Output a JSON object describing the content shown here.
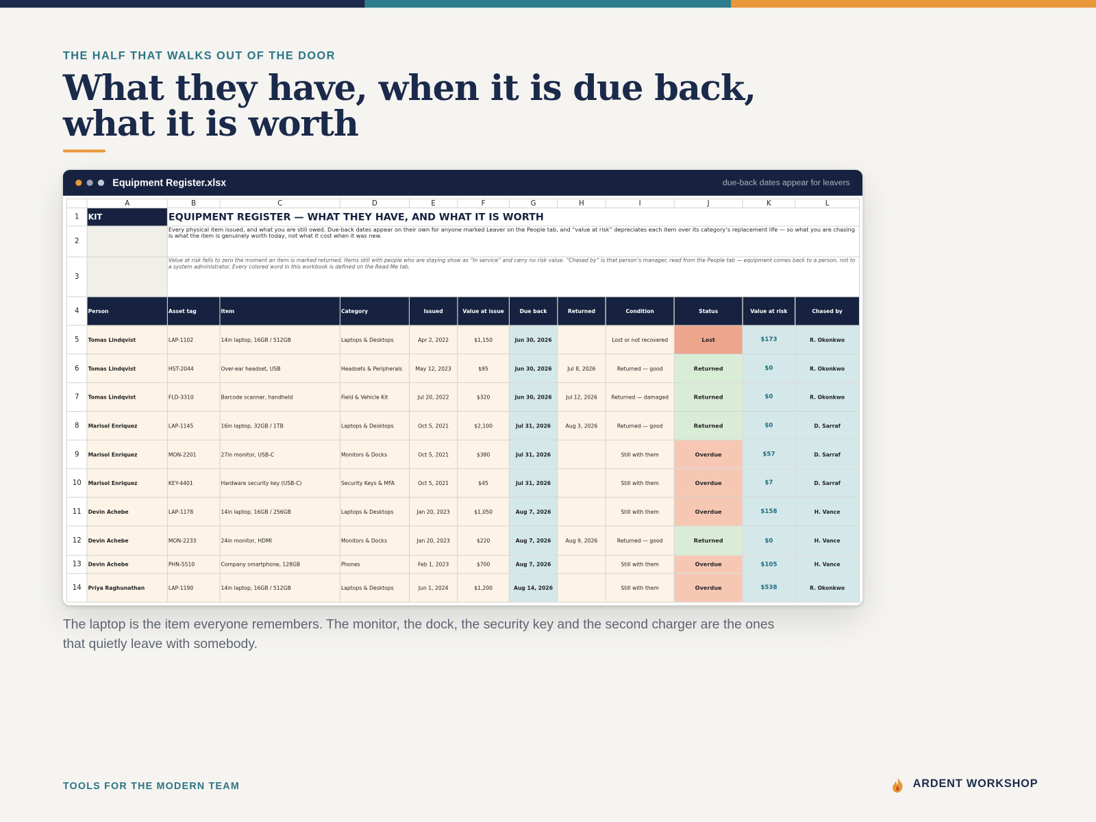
{
  "header": {
    "eyebrow": "THE HALF THAT WALKS OUT OF THE DOOR",
    "title": "What they have, when it is due back, what it is worth"
  },
  "window": {
    "filename": "Equipment Register.xlsx",
    "note": "due-back dates appear for leavers"
  },
  "sheet": {
    "columns": [
      "A",
      "B",
      "C",
      "D",
      "E",
      "F",
      "G",
      "H",
      "I",
      "J",
      "K",
      "L"
    ],
    "row_numbers": [
      1,
      2,
      3,
      4,
      5,
      6,
      7,
      8,
      9,
      10,
      11,
      12,
      13,
      14
    ],
    "kit": "KIT",
    "title": "EQUIPMENT REGISTER — WHAT THEY HAVE, AND WHAT IT IS WORTH",
    "description": "Every physical item issued, and what you are still owed. Due-back dates appear on their own for anyone marked Leaver on the People tab, and “value at risk” depreciates each item over its category’s replacement life — so what you are chasing is what the item is genuinely worth today, not what it cost when it was new.",
    "note": "Value at risk falls to zero the moment an item is marked returned. Items still with people who are staying show as “In service” and carry no risk value. “Chased by” is that person’s manager, read from the People tab — equipment comes back to a person, not to a system administrator. Every colored word in this workbook is defined on the Read Me tab.",
    "headers": [
      "Person",
      "Asset tag",
      "Item",
      "Category",
      "Issued",
      "Value at issue",
      "Due back",
      "Returned",
      "Condition",
      "Status",
      "Value at risk",
      "Chased by"
    ],
    "rows": [
      [
        "Tomas Lindqvist",
        "LAP-1102",
        "14in laptop, 16GB / 512GB",
        "Laptops & Desktops",
        "Apr 2, 2022",
        "$1,150",
        "Jun 30, 2026",
        "",
        "Lost or not recovered",
        "Lost",
        "$173",
        "R. Okonkwo"
      ],
      [
        "Tomas Lindqvist",
        "HST-2044",
        "Over-ear headset, USB",
        "Headsets & Peripherals",
        "May 12, 2023",
        "$95",
        "Jun 30, 2026",
        "Jul 8, 2026",
        "Returned — good",
        "Returned",
        "$0",
        "R. Okonkwo"
      ],
      [
        "Tomas Lindqvist",
        "FLD-3310",
        "Barcode scanner, handheld",
        "Field & Vehicle Kit",
        "Jul 20, 2022",
        "$320",
        "Jun 30, 2026",
        "Jul 12, 2026",
        "Returned — damaged",
        "Returned",
        "$0",
        "R. Okonkwo"
      ],
      [
        "Marisol Enriquez",
        "LAP-1145",
        "16in laptop, 32GB / 1TB",
        "Laptops & Desktops",
        "Oct 5, 2021",
        "$2,100",
        "Jul 31, 2026",
        "Aug 3, 2026",
        "Returned — good",
        "Returned",
        "$0",
        "D. Sarraf"
      ],
      [
        "Marisol Enriquez",
        "MON-2201",
        "27in monitor, USB-C",
        "Monitors & Docks",
        "Oct 5, 2021",
        "$380",
        "Jul 31, 2026",
        "",
        "Still with them",
        "Overdue",
        "$57",
        "D. Sarraf"
      ],
      [
        "Marisol Enriquez",
        "KEY-4401",
        "Hardware security key (USB-C)",
        "Security Keys & MFA",
        "Oct 5, 2021",
        "$45",
        "Jul 31, 2026",
        "",
        "Still with them",
        "Overdue",
        "$7",
        "D. Sarraf"
      ],
      [
        "Devin Achebe",
        "LAP-1178",
        "14in laptop, 16GB / 256GB",
        "Laptops & Desktops",
        "Jan 20, 2023",
        "$1,050",
        "Aug 7, 2026",
        "",
        "Still with them",
        "Overdue",
        "$158",
        "H. Vance"
      ],
      [
        "Devin Achebe",
        "MON-2233",
        "24in monitor, HDMI",
        "Monitors & Docks",
        "Jan 20, 2023",
        "$220",
        "Aug 7, 2026",
        "Aug 9, 2026",
        "Returned — good",
        "Returned",
        "$0",
        "H. Vance"
      ],
      [
        "Devin Achebe",
        "PHN-5510",
        "Company smartphone, 128GB",
        "Phones",
        "Feb 1, 2023",
        "$700",
        "Aug 7, 2026",
        "",
        "Still with them",
        "Overdue",
        "$105",
        "H. Vance"
      ],
      [
        "Priya Raghunathan",
        "LAP-1190",
        "14in laptop, 16GB / 512GB",
        "Laptops & Desktops",
        "Jun 1, 2024",
        "$1,200",
        "Aug 14, 2026",
        "",
        "Still with them",
        "Overdue",
        "$538",
        "R. Okonkwo"
      ]
    ],
    "status_colors": [
      "#eda58c",
      "#d9ecd6",
      "#d9ecd6",
      "#d9ecd6",
      "#f6c8b4",
      "#f6c8b4",
      "#f6c8b4",
      "#d9ecd6",
      "#f6c8b4",
      "#f6c8b4"
    ]
  },
  "caption": "The laptop is the item everyone remembers. The monitor, the dock, the security key and the second charger are the ones that quietly leave with somebody.",
  "footer": {
    "left": "TOOLS FOR THE MODERN TEAM",
    "brand": "ARDENT WORKSHOP"
  }
}
